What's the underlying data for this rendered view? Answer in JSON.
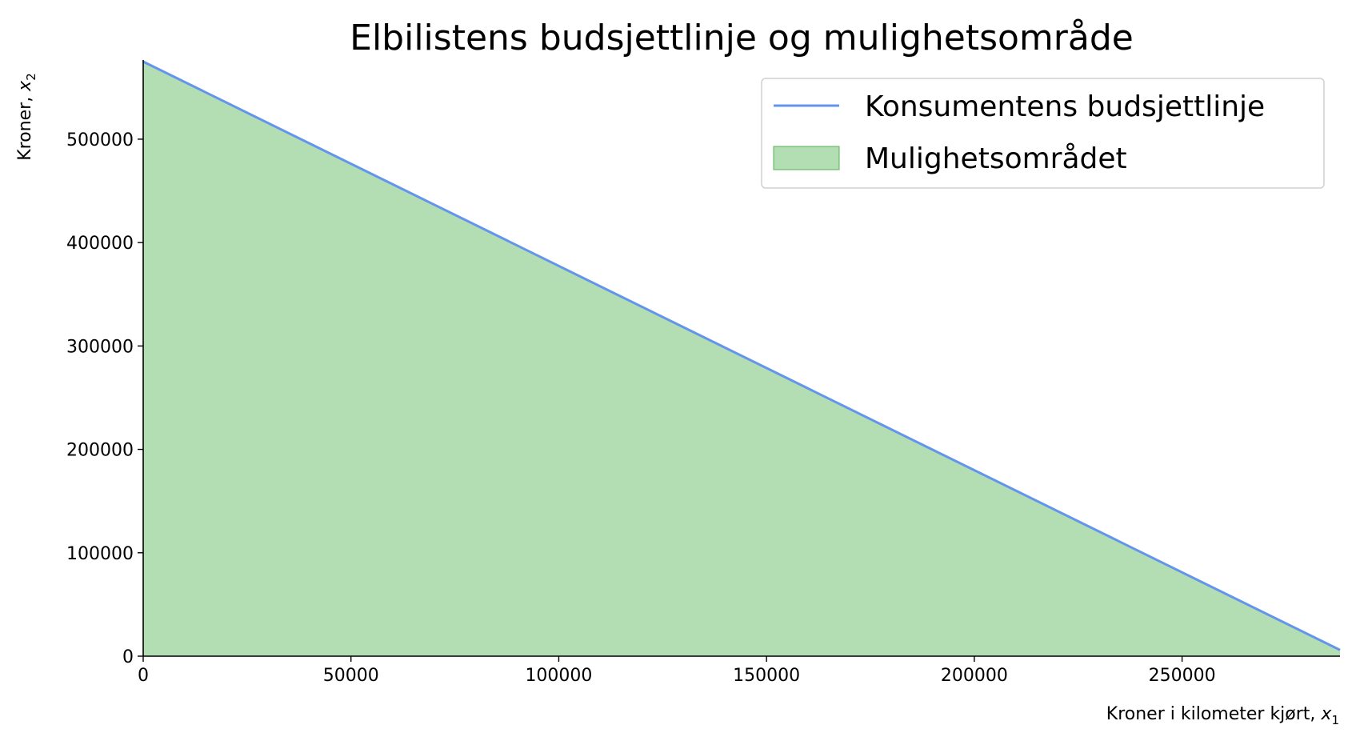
{
  "chart_data": {
    "type": "area",
    "title": "Elbilistens budsjettlinje og mulighetsområde",
    "xlabel": {
      "text": "Kroner i kilometer kjørt, ",
      "var": "x",
      "sub": "1"
    },
    "ylabel": {
      "text": "Kroner, ",
      "var": "x",
      "sub": "2"
    },
    "xlim": [
      0,
      288000
    ],
    "ylim": [
      0,
      575000
    ],
    "x_ticks": [
      0,
      50000,
      100000,
      150000,
      200000,
      250000
    ],
    "y_ticks": [
      0,
      100000,
      200000,
      300000,
      400000,
      500000
    ],
    "series": [
      {
        "name": "Konsumentens budsjettlinje",
        "kind": "line",
        "color": "#6495ED",
        "x": [
          0,
          288000
        ],
        "y": [
          575000,
          6000
        ]
      },
      {
        "name": "Mulighetsområdet",
        "kind": "fill",
        "color": "#2ca02c",
        "opacity": 0.36,
        "x": [
          0,
          288000
        ],
        "y": [
          575000,
          6000
        ]
      }
    ],
    "legend_position": "top-right",
    "grid": false
  }
}
